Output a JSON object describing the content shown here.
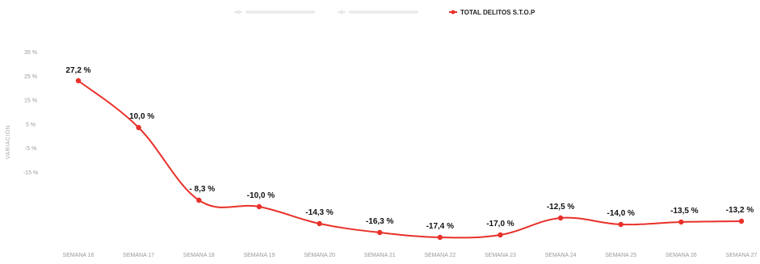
{
  "chart_data": {
    "type": "line",
    "title": "",
    "legend_position": "top-center",
    "legend": [
      {
        "name": "",
        "color": "#e8e8e8",
        "faint": true
      },
      {
        "name": "",
        "color": "#e8e8e8",
        "faint": true
      },
      {
        "name": "TOTAL DELITOS S.T.O.P",
        "color": "#e8312a",
        "faint": false
      }
    ],
    "xlabel": "",
    "ylabel": "VARIACIÓN",
    "y_ticks": [
      "35 %",
      "25 %",
      "15 %",
      "5 %",
      "-5 %",
      "-15 %"
    ],
    "ylim": [
      -15,
      35
    ],
    "grid": false,
    "categories": [
      "SEMANA 16",
      "SEMANA 17",
      "SEMANA 18",
      "SEMANA 19",
      "SEMANA 20",
      "SEMANA 21",
      "SEMANA 22",
      "SEMANA 23",
      "SEMANA 24",
      "SEMANA 25",
      "SEMANA 26",
      "SEMANA 27"
    ],
    "series": [
      {
        "name": "TOTAL DELITOS S.T.O.P",
        "color": "#e8312a",
        "values": [
          27.2,
          10.0,
          -8.3,
          -10.0,
          -14.3,
          -16.3,
          -17.4,
          -17.0,
          -12.5,
          -14.0,
          -13.5,
          -13.2
        ],
        "labels": [
          "27,2 %",
          "10,0 %",
          "- 8,3 %",
          "-10,0 %",
          "-14,3 %",
          "-16,3 %",
          "-17,4 %",
          "-17,0 %",
          "-12,5 %",
          "-14,0 %",
          "-13,5 %",
          "-13,2 %"
        ]
      }
    ]
  }
}
